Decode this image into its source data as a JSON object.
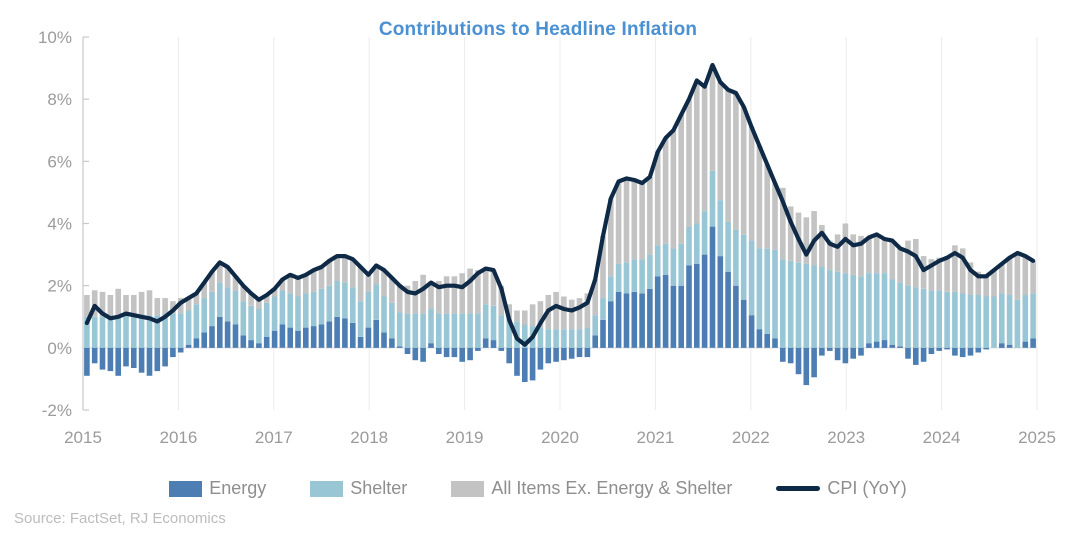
{
  "title": "Contributions to Headline Inflation",
  "source": "Source: FactSet, RJ Economics",
  "colors": {
    "energy": "#4d7eb3",
    "shelter": "#99c6d5",
    "all_items_ex": "#c3c3c3",
    "cpi_line": "#0e2a47",
    "title": "#4a90d2",
    "axis_text": "#9b9b9b",
    "gridline": "#ebebeb",
    "axis_line": "#c9c9c9",
    "source_text": "#bcbcbc"
  },
  "legend": [
    {
      "label": "Energy",
      "color": "#4d7eb3",
      "marker": "rect"
    },
    {
      "label": "Shelter",
      "color": "#99c6d5",
      "marker": "rect"
    },
    {
      "label": "All Items Ex. Energy & Shelter",
      "color": "#c3c3c3",
      "marker": "rect"
    },
    {
      "label": "CPI (YoY)",
      "color": "#0e2a47",
      "marker": "line"
    }
  ],
  "chart_data": {
    "type": "bar",
    "subtype": "stacked-bars-with-line",
    "frequency": "monthly",
    "x_tick_labels": [
      "2015",
      "2016",
      "2017",
      "2018",
      "2019",
      "2020",
      "2021",
      "2022",
      "2023",
      "2024",
      "2025"
    ],
    "y_ticks": [
      {
        "value": 10,
        "label": "10%"
      },
      {
        "value": 8,
        "label": "8%"
      },
      {
        "value": 6,
        "label": "6%"
      },
      {
        "value": 4,
        "label": "4%"
      },
      {
        "value": 2,
        "label": "2%"
      },
      {
        "value": 0,
        "label": "0%"
      },
      {
        "value": -2,
        "label": "-2%"
      }
    ],
    "ylim": [
      -2,
      10
    ],
    "grid": "vertical-year-lines",
    "legend_position": "bottom",
    "series": [
      {
        "name": "Energy",
        "type": "bar",
        "color": "#4d7eb3",
        "values": [
          -0.9,
          -0.5,
          -0.7,
          -0.75,
          -0.9,
          -0.6,
          -0.65,
          -0.8,
          -0.9,
          -0.75,
          -0.6,
          -0.3,
          -0.15,
          0.1,
          0.3,
          0.5,
          0.7,
          1.0,
          0.85,
          0.75,
          0.4,
          0.25,
          0.15,
          0.35,
          0.55,
          0.75,
          0.65,
          0.55,
          0.65,
          0.7,
          0.75,
          0.85,
          1.0,
          0.95,
          0.8,
          0.35,
          0.65,
          0.9,
          0.5,
          0.3,
          0.05,
          -0.2,
          -0.4,
          -0.45,
          0.15,
          -0.2,
          -0.3,
          -0.3,
          -0.45,
          -0.4,
          -0.1,
          0.3,
          0.25,
          -0.1,
          -0.5,
          -0.9,
          -1.1,
          -1.05,
          -0.7,
          -0.5,
          -0.45,
          -0.4,
          -0.35,
          -0.3,
          -0.3,
          0.4,
          0.9,
          1.5,
          1.8,
          1.75,
          1.8,
          1.75,
          1.9,
          2.3,
          2.35,
          2.0,
          2.0,
          2.65,
          2.7,
          3.0,
          3.9,
          2.95,
          2.45,
          2.0,
          1.55,
          1.05,
          0.6,
          0.45,
          0.3,
          -0.45,
          -0.5,
          -0.85,
          -1.2,
          -0.95,
          -0.25,
          -0.1,
          -0.4,
          -0.5,
          -0.35,
          -0.25,
          0.15,
          0.2,
          0.25,
          0.1,
          0.05,
          -0.35,
          -0.55,
          -0.45,
          -0.2,
          -0.1,
          -0.05,
          -0.25,
          -0.3,
          -0.25,
          -0.15,
          -0.05,
          0.0,
          0.15,
          0.1,
          0.0,
          0.2,
          0.3
        ]
      },
      {
        "name": "Shelter",
        "type": "bar",
        "color": "#99c6d5",
        "values": [
          1.0,
          1.0,
          1.0,
          1.0,
          1.05,
          1.05,
          1.05,
          1.05,
          1.05,
          1.05,
          1.1,
          1.1,
          1.1,
          1.1,
          1.1,
          1.1,
          1.1,
          1.1,
          1.1,
          1.1,
          1.1,
          1.1,
          1.1,
          1.1,
          1.1,
          1.1,
          1.1,
          1.1,
          1.1,
          1.1,
          1.15,
          1.15,
          1.15,
          1.15,
          1.15,
          1.15,
          1.15,
          1.15,
          1.15,
          1.15,
          1.1,
          1.1,
          1.1,
          1.1,
          1.1,
          1.1,
          1.1,
          1.1,
          1.1,
          1.1,
          1.1,
          1.1,
          1.1,
          1.05,
          0.95,
          0.85,
          0.75,
          0.7,
          0.65,
          0.6,
          0.6,
          0.6,
          0.6,
          0.6,
          0.65,
          0.65,
          0.7,
          0.8,
          0.9,
          1.0,
          1.05,
          1.1,
          1.1,
          1.0,
          1.0,
          1.2,
          1.35,
          1.25,
          1.3,
          1.4,
          1.8,
          1.8,
          1.6,
          1.8,
          2.1,
          2.4,
          2.6,
          2.75,
          2.85,
          2.85,
          2.8,
          2.75,
          2.7,
          2.65,
          2.6,
          2.5,
          2.45,
          2.4,
          2.35,
          2.3,
          2.25,
          2.2,
          2.15,
          2.1,
          2.05,
          2.0,
          1.95,
          1.9,
          1.85,
          1.85,
          1.8,
          1.8,
          1.75,
          1.7,
          1.7,
          1.65,
          1.65,
          1.6,
          1.6,
          1.55,
          1.5,
          1.45
        ]
      },
      {
        "name": "All Items Ex. Energy & Shelter",
        "type": "bar",
        "color": "#c3c3c3",
        "values": [
          0.7,
          0.85,
          0.8,
          0.7,
          0.85,
          0.65,
          0.65,
          0.75,
          0.8,
          0.55,
          0.5,
          0.4,
          0.5,
          0.4,
          0.35,
          0.5,
          0.65,
          0.65,
          0.65,
          0.45,
          0.5,
          0.4,
          0.3,
          0.25,
          0.25,
          0.35,
          0.6,
          0.6,
          0.6,
          0.7,
          0.7,
          0.8,
          0.8,
          0.85,
          0.9,
          1.1,
          0.55,
          0.6,
          0.85,
          0.8,
          0.85,
          0.9,
          1.05,
          1.25,
          0.85,
          1.05,
          1.2,
          1.2,
          1.3,
          1.45,
          1.4,
          1.15,
          1.15,
          0.95,
          0.45,
          0.35,
          0.45,
          0.7,
          0.85,
          1.1,
          1.2,
          1.05,
          0.95,
          1.0,
          1.1,
          1.15,
          2.0,
          2.5,
          2.65,
          2.7,
          2.55,
          2.45,
          2.5,
          3.0,
          3.4,
          3.8,
          4.15,
          4.1,
          4.6,
          4.0,
          3.4,
          3.8,
          4.25,
          4.4,
          4.1,
          3.65,
          3.3,
          2.7,
          2.15,
          2.3,
          1.75,
          1.6,
          1.5,
          1.75,
          1.35,
          0.95,
          1.2,
          1.6,
          1.3,
          1.3,
          1.15,
          1.25,
          1.1,
          1.25,
          1.1,
          1.45,
          1.55,
          1.05,
          1.0,
          1.05,
          1.15,
          1.5,
          1.45,
          1.05,
          0.75,
          0.7,
          0.85,
          0.95,
          1.2,
          1.5,
          1.25,
          1.05
        ]
      },
      {
        "name": "CPI (YoY)",
        "type": "line",
        "color": "#0e2a47",
        "values": [
          0.8,
          1.35,
          1.1,
          0.95,
          1.0,
          1.1,
          1.05,
          1.0,
          0.95,
          0.85,
          1.0,
          1.2,
          1.45,
          1.6,
          1.75,
          2.1,
          2.45,
          2.75,
          2.6,
          2.3,
          2.0,
          1.75,
          1.55,
          1.7,
          1.9,
          2.2,
          2.35,
          2.25,
          2.35,
          2.5,
          2.6,
          2.8,
          2.95,
          2.95,
          2.85,
          2.6,
          2.35,
          2.65,
          2.5,
          2.25,
          2.0,
          1.8,
          1.75,
          1.9,
          2.1,
          1.95,
          2.0,
          2.0,
          1.95,
          2.15,
          2.4,
          2.55,
          2.5,
          1.9,
          0.9,
          0.3,
          0.1,
          0.35,
          0.8,
          1.2,
          1.35,
          1.25,
          1.2,
          1.3,
          1.45,
          2.2,
          3.6,
          4.8,
          5.35,
          5.45,
          5.4,
          5.3,
          5.5,
          6.3,
          6.75,
          7.0,
          7.5,
          8.0,
          8.6,
          8.4,
          9.1,
          8.55,
          8.3,
          8.2,
          7.75,
          7.1,
          6.5,
          5.9,
          5.3,
          4.7,
          4.05,
          3.5,
          3.0,
          3.45,
          3.7,
          3.35,
          3.25,
          3.5,
          3.3,
          3.35,
          3.55,
          3.65,
          3.5,
          3.45,
          3.2,
          3.1,
          2.95,
          2.5,
          2.65,
          2.8,
          2.9,
          3.05,
          2.9,
          2.5,
          2.3,
          2.3,
          2.5,
          2.7,
          2.9,
          3.05,
          2.95,
          2.8
        ]
      }
    ]
  }
}
